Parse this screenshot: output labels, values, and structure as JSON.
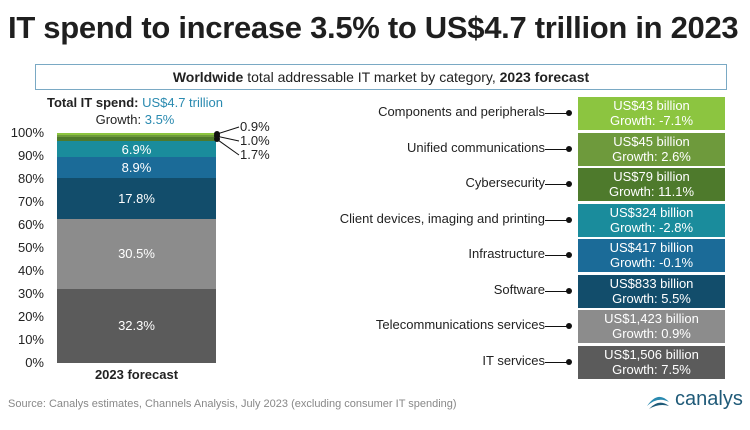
{
  "title": "IT spend to increase 3.5% to US$4.7 trillion in 2023",
  "subtitle": {
    "bold1": "Worldwide",
    "mid": " total addressable IT market by category, ",
    "bold2": "2023 forecast"
  },
  "total": {
    "label": "Total IT spend: ",
    "value": "US$4.7 trillion",
    "growth_label": "Growth: ",
    "growth": "3.5%"
  },
  "source": "Source: Canalys estimates, Channels Analysis, July 2023 (excluding consumer IT spending)",
  "logo": "canalys",
  "chart_data": {
    "type": "bar",
    "stacked": true,
    "categories": [
      "2023 forecast"
    ],
    "ylim": [
      0,
      100
    ],
    "yticks": [
      "0%",
      "10%",
      "20%",
      "30%",
      "40%",
      "50%",
      "60%",
      "70%",
      "80%",
      "90%",
      "100%"
    ],
    "series": [
      {
        "name": "IT services",
        "share": 32.3,
        "label": "32.3%",
        "spend": "US$1,506 billion",
        "growth": "Growth: 7.5%",
        "color": "#5b5b5b"
      },
      {
        "name": "Telecommunications services",
        "share": 30.5,
        "label": "30.5%",
        "spend": "US$1,423 billion",
        "growth": "Growth: 0.9%",
        "color": "#8c8c8c"
      },
      {
        "name": "Software",
        "share": 17.8,
        "label": "17.8%",
        "spend": "US$833 billion",
        "growth": "Growth: 5.5%",
        "color": "#124d6b"
      },
      {
        "name": "Infrastructure",
        "share": 8.9,
        "label": "8.9%",
        "spend": "US$417 billion",
        "growth": "Growth: -0.1%",
        "color": "#1b6b98"
      },
      {
        "name": "Client devices, imaging and printing",
        "share": 6.9,
        "label": "6.9%",
        "spend": "US$324 billion",
        "growth": "Growth: -2.8%",
        "color": "#1a8c9c"
      },
      {
        "name": "Cybersecurity",
        "share": 1.7,
        "label": "1.7%",
        "spend": "US$79 billion",
        "growth": "Growth: 11.1%",
        "color": "#4e7a2c"
      },
      {
        "name": "Unified communications",
        "share": 1.0,
        "label": "1.0%",
        "spend": "US$45 billion",
        "growth": "Growth: 2.6%",
        "color": "#6e9a3c"
      },
      {
        "name": "Components and peripherals",
        "share": 0.9,
        "label": "0.9%",
        "spend": "US$43 billion",
        "growth": "Growth: -7.1%",
        "color": "#8cc540"
      }
    ]
  }
}
